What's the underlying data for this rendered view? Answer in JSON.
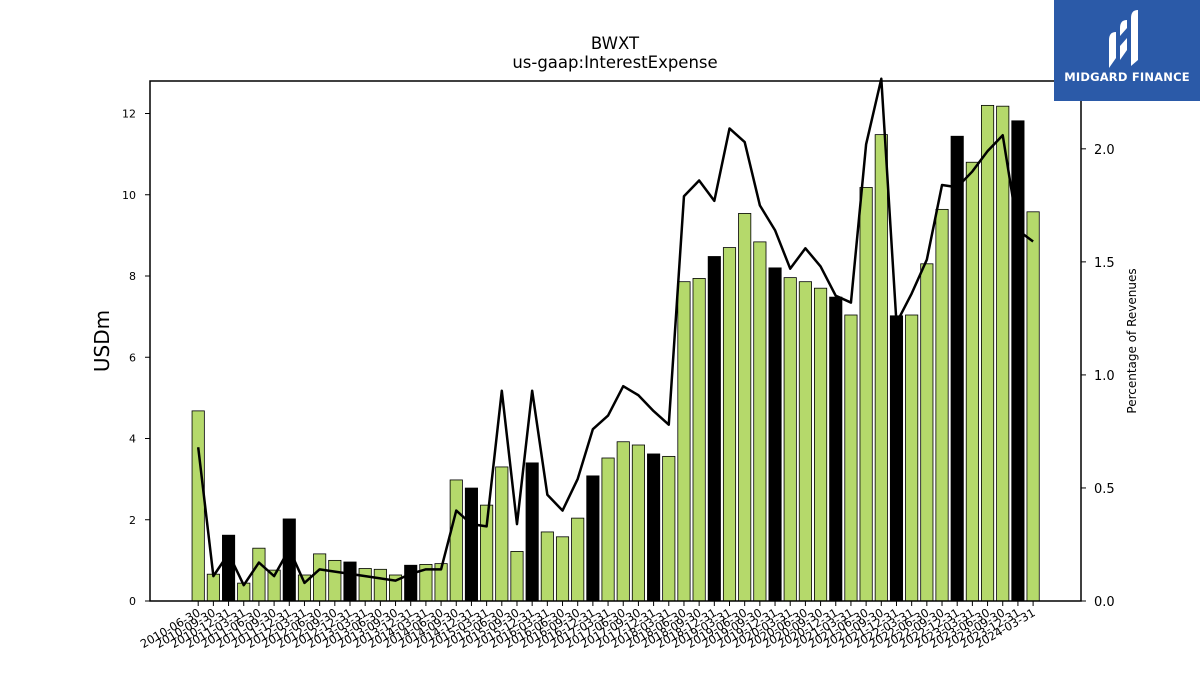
{
  "chart_data": {
    "type": "bar",
    "title": "BWXT",
    "subtitle": "us-gaap:InterestExpense",
    "ylabel": "USDm",
    "y2label": "Percentage of Revenues",
    "ylim": [
      0,
      12.8
    ],
    "y2lim": [
      0,
      2.3
    ],
    "yticks": [
      "0",
      "2",
      "4",
      "6",
      "8",
      "10",
      "12"
    ],
    "y2ticks": [
      "0.0",
      "0.5",
      "1.0",
      "1.5",
      "2.0"
    ],
    "colors": {
      "bar": "#b5d96b",
      "bar_annual": "#000000",
      "line": "#000000"
    },
    "categories": [
      "2010-06-30",
      "2010-09-30",
      "2010-12-31",
      "2011-03-31",
      "2011-06-30",
      "2011-09-30",
      "2011-12-31",
      "2012-03-31",
      "2012-06-30",
      "2012-09-30",
      "2012-12-31",
      "2013-03-31",
      "2013-06-30",
      "2013-09-30",
      "2013-12-31",
      "2014-03-31",
      "2014-06-30",
      "2014-09-30",
      "2014-12-31",
      "2015-03-31",
      "2015-06-30",
      "2015-09-30",
      "2015-12-31",
      "2016-03-31",
      "2016-06-30",
      "2016-09-30",
      "2016-12-31",
      "2017-03-31",
      "2017-06-30",
      "2017-09-30",
      "2017-12-31",
      "2018-03-31",
      "2018-06-30",
      "2018-09-30",
      "2018-12-31",
      "2019-03-31",
      "2019-06-30",
      "2019-09-30",
      "2019-12-31",
      "2020-03-31",
      "2020-06-30",
      "2020-09-30",
      "2020-12-31",
      "2021-03-31",
      "2021-06-30",
      "2021-09-30",
      "2021-12-31",
      "2022-03-31",
      "2022-06-30",
      "2022-09-30",
      "2022-12-31",
      "2023-03-31",
      "2023-06-30",
      "2023-09-30",
      "2023-12-31",
      "2024-03-31"
    ],
    "xtick_labels": [
      "2010-06-30",
      "2010-09-30",
      "2010-12-31",
      "2011-03-31",
      "2011-06-30",
      "2011-09-30",
      "2011-12-31",
      "2012-03-31",
      "2012-06-30",
      "2012-09-30",
      "2012-12-31",
      "2013-03-31",
      "2013-06-30",
      "2013-09-30",
      "2013-12-31",
      "2014-03-31",
      "2014-06-30",
      "2014-09-30",
      "2014-12-31",
      "2015-03-31",
      "2015-06-30",
      "2015-09-30",
      "2015-12-31",
      "2016-03-31",
      "2016-06-30",
      "2016-09-30",
      "2016-12-31",
      "2017-03-31",
      "2017-06-30",
      "2017-09-30",
      "2017-12-31",
      "2018-03-31",
      "2018-06-30",
      "2018-09-30",
      "2018-12-31",
      "2019-03-31",
      "2019-06-30",
      "2019-09-30",
      "2019-12-31",
      "2020-03-31",
      "2020-06-30",
      "2020-09-30",
      "2020-12-31",
      "2021-03-31",
      "2021-06-30",
      "2021-09-30",
      "2021-12-31",
      "2022-03-31",
      "2022-06-30",
      "2022-09-30",
      "2022-12-31",
      "2023-03-31",
      "2023-06-30",
      "2023-09-30",
      "2023-12-31",
      "2024-03-31"
    ],
    "series": [
      {
        "type": "bar",
        "axis": "left",
        "values": [
          4.68,
          0.66,
          1.62,
          0.44,
          1.3,
          0.76,
          2.02,
          0.64,
          1.16,
          1.0,
          0.96,
          0.8,
          0.78,
          0.64,
          0.88,
          0.9,
          0.92,
          2.98,
          2.78,
          2.36,
          3.3,
          1.22,
          3.4,
          1.7,
          1.58,
          2.04,
          3.08,
          3.52,
          3.92,
          3.84,
          3.62,
          3.56,
          7.86,
          7.94,
          8.48,
          8.7,
          9.54,
          8.84,
          8.2,
          7.96,
          7.86,
          7.7,
          7.48,
          7.04,
          10.18,
          11.48,
          7.02,
          7.04,
          8.3,
          9.64,
          11.44,
          10.8,
          12.2,
          12.18,
          11.82,
          9.58
        ],
        "annual": [
          false,
          false,
          true,
          false,
          false,
          false,
          true,
          false,
          false,
          false,
          true,
          false,
          false,
          false,
          true,
          false,
          false,
          false,
          true,
          false,
          false,
          false,
          true,
          false,
          false,
          false,
          true,
          false,
          false,
          false,
          true,
          false,
          false,
          false,
          true,
          false,
          false,
          false,
          true,
          false,
          false,
          false,
          true,
          false,
          false,
          false,
          true,
          false,
          false,
          false,
          true,
          false,
          false,
          false,
          true,
          false
        ]
      },
      {
        "type": "line",
        "axis": "right",
        "values": [
          0.68,
          0.11,
          0.21,
          0.07,
          0.17,
          0.11,
          0.23,
          0.08,
          0.14,
          0.13,
          0.12,
          0.11,
          0.1,
          0.09,
          0.12,
          0.14,
          0.14,
          0.4,
          0.34,
          0.33,
          0.93,
          0.34,
          0.93,
          0.47,
          0.4,
          0.54,
          0.76,
          0.82,
          0.95,
          0.91,
          0.84,
          0.78,
          1.79,
          1.86,
          1.77,
          2.09,
          2.03,
          1.75,
          1.64,
          1.47,
          1.56,
          1.48,
          1.35,
          1.32,
          2.02,
          2.31,
          1.23,
          1.36,
          1.51,
          1.84,
          1.83,
          1.9,
          1.99,
          2.06,
          1.64,
          1.59
        ]
      }
    ],
    "grid": false,
    "legend": "none"
  },
  "branding": {
    "text": "MIDGARD FINANCE"
  }
}
